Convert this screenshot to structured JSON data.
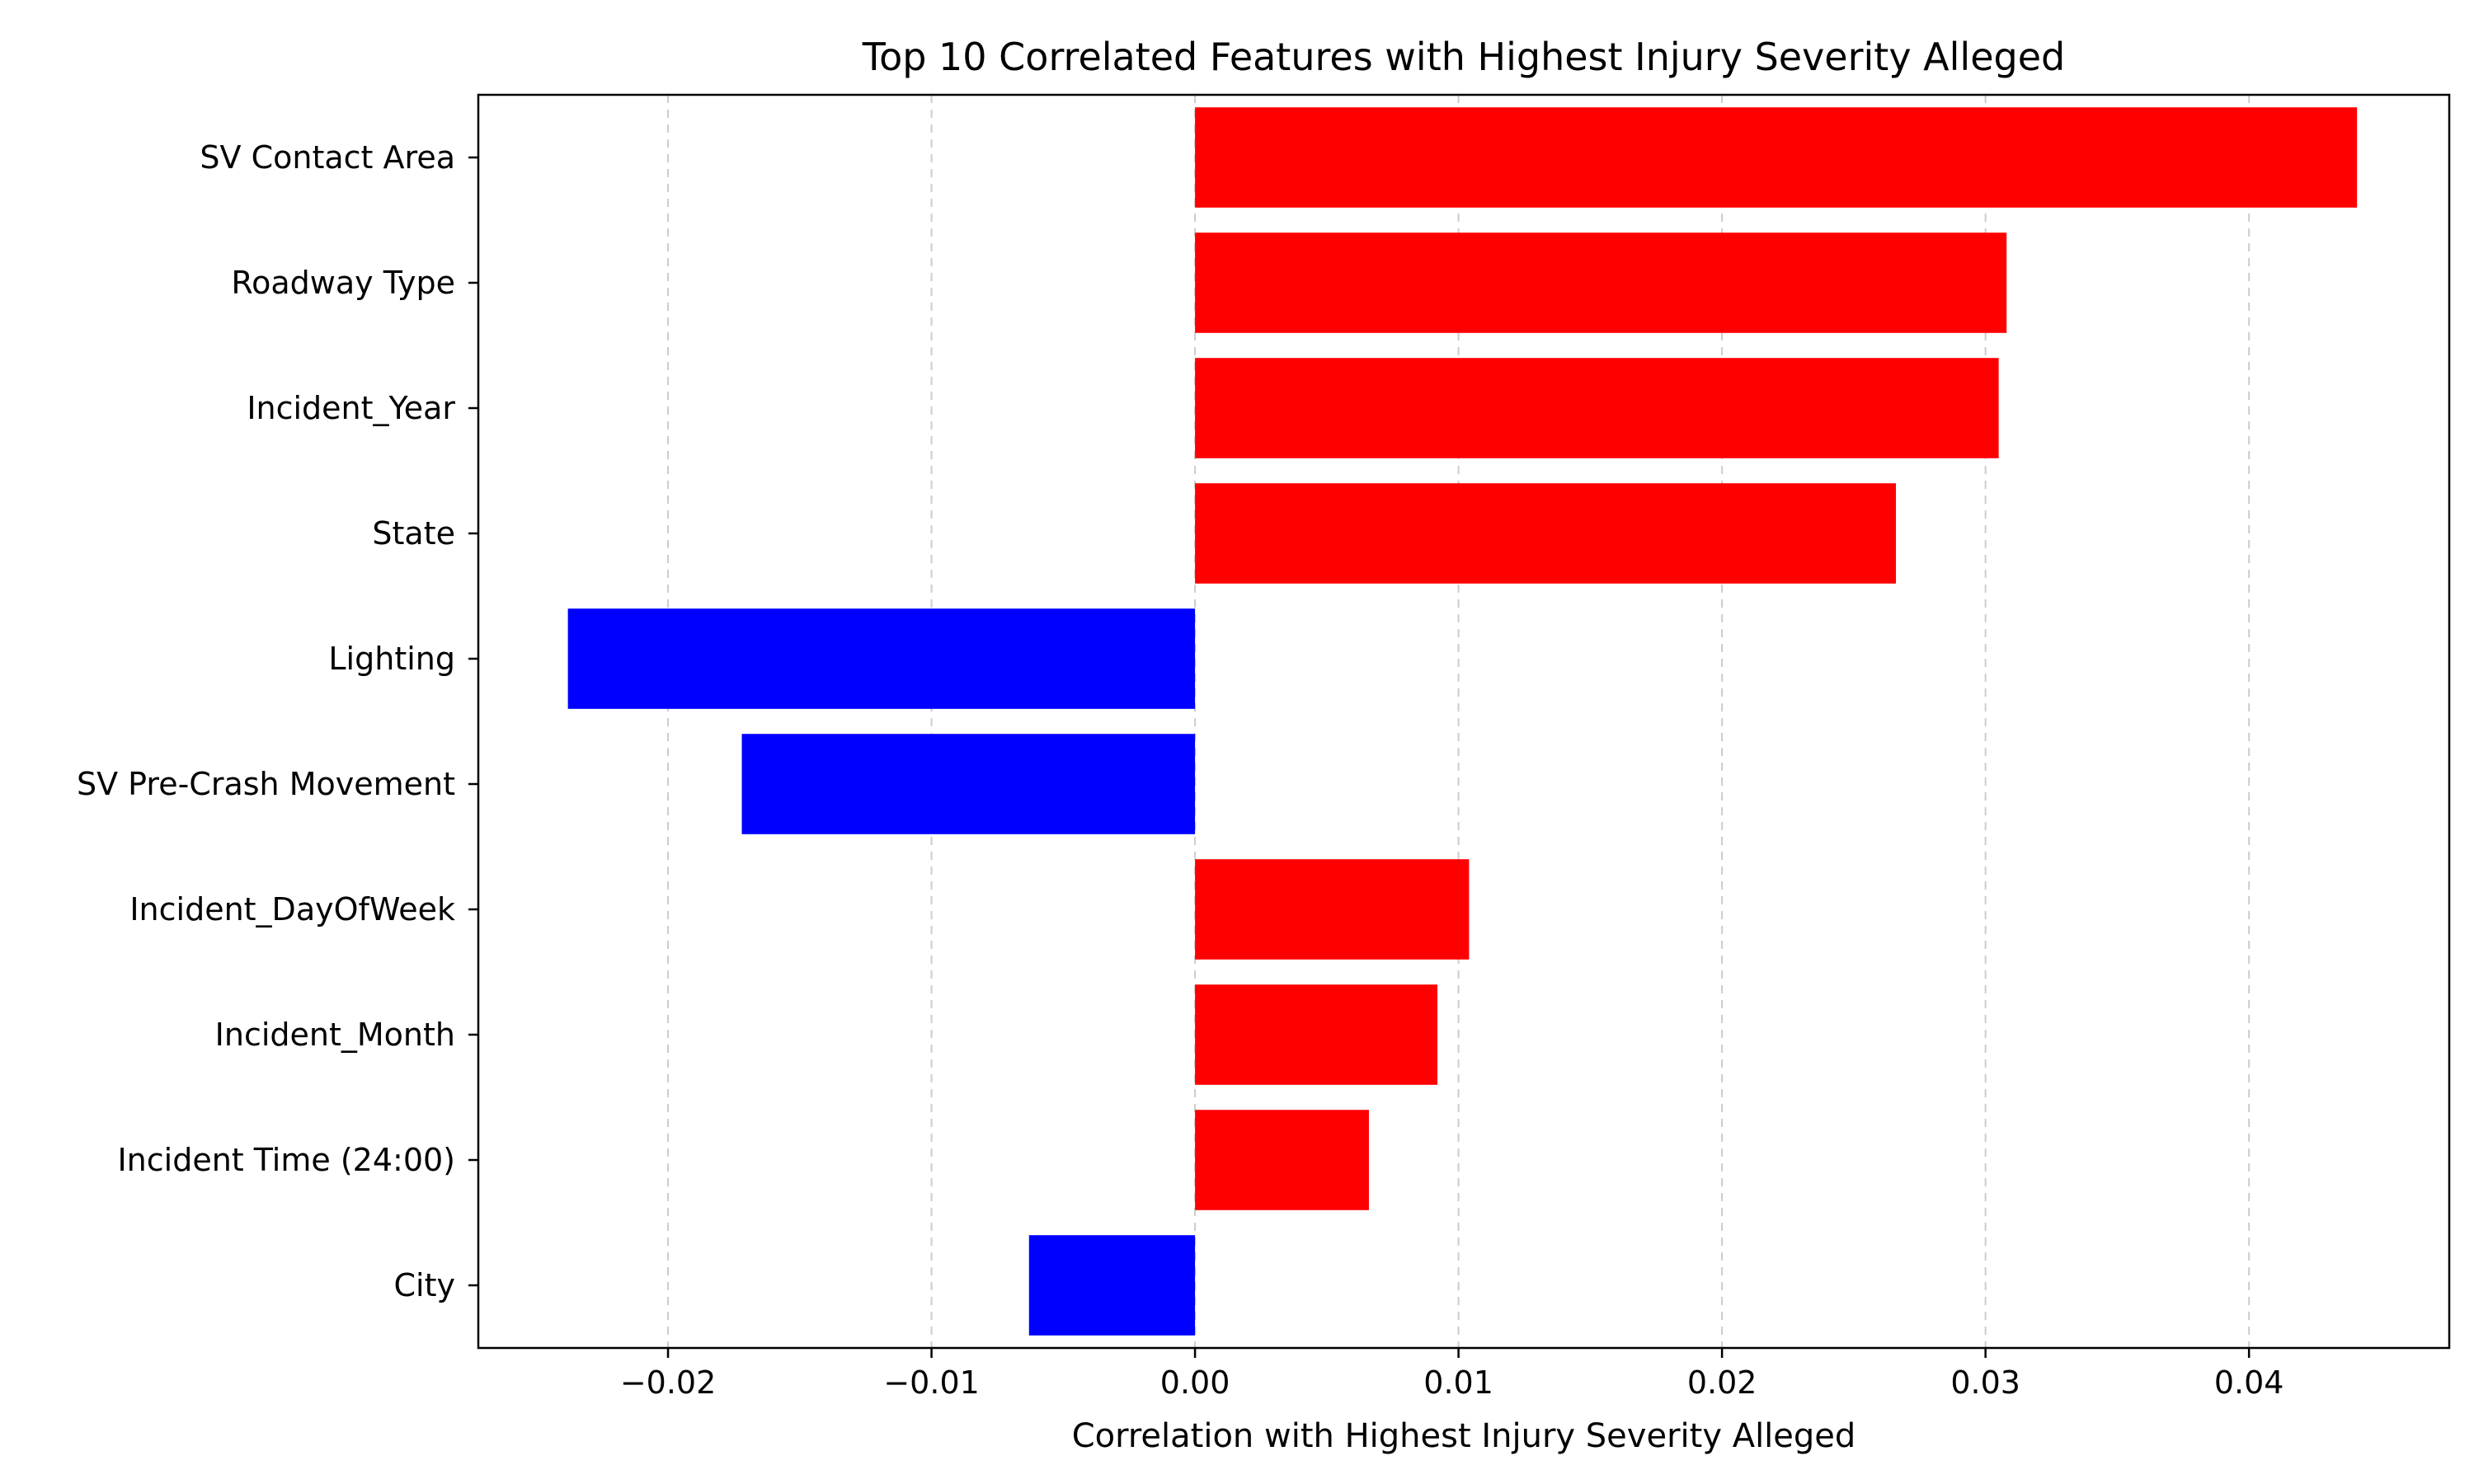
{
  "chart_data": {
    "type": "bar",
    "orientation": "horizontal",
    "title": "Top 10 Correlated Features with Highest Injury Severity Alleged",
    "xlabel": "Correlation with Highest Injury Severity Alleged",
    "ylabel": "",
    "categories": [
      "SV Contact Area",
      "Roadway Type",
      "Incident_Year",
      "State",
      "Lighting",
      "SV Pre-Crash Movement",
      "Incident_DayOfWeek",
      "Incident_Month",
      "Incident Time (24:00)",
      "City"
    ],
    "values": [
      0.0441,
      0.0308,
      0.0305,
      0.0266,
      -0.0238,
      -0.0172,
      0.0104,
      0.0092,
      0.0066,
      -0.0063
    ],
    "xlim": [
      -0.0272,
      0.0476
    ],
    "xticks": [
      -0.02,
      -0.01,
      0.0,
      0.01,
      0.02,
      0.03,
      0.04
    ],
    "xtick_labels": [
      "−0.02",
      "−0.01",
      "0.00",
      "0.01",
      "0.02",
      "0.03",
      "0.04"
    ],
    "positive_color": "#ff0000",
    "negative_color": "#0000ff",
    "grid": "x-dashed"
  }
}
